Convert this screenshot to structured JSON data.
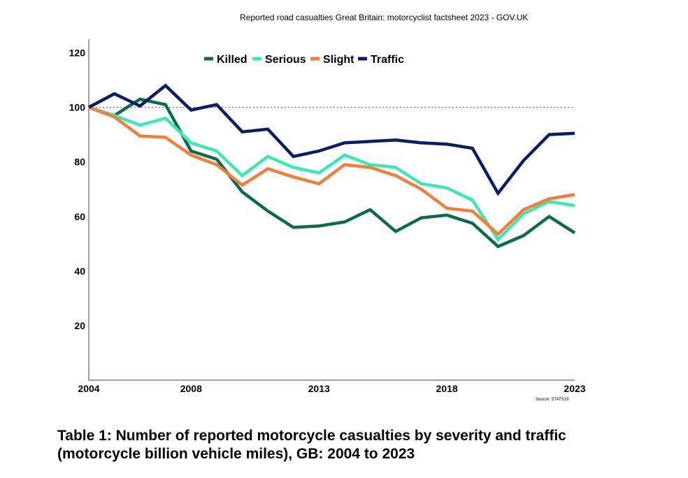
{
  "header": {
    "text": "Reported road casualties Great Britain: motorcyclist factsheet 2023 - GOV.UK"
  },
  "caption": {
    "text": "Table 1: Number of reported motorcycle casualties by severity and traffic (motorcycle billion vehicle miles), GB: 2004 to 2023"
  },
  "chart_data": {
    "type": "line",
    "title": "",
    "xlabel": "",
    "ylabel": "",
    "x": [
      2004,
      2005,
      2006,
      2007,
      2008,
      2009,
      2010,
      2011,
      2012,
      2013,
      2014,
      2015,
      2016,
      2017,
      2018,
      2019,
      2020,
      2021,
      2022,
      2023
    ],
    "x_tick_labels": [
      "2004",
      "2008",
      "2013",
      "2018",
      "2023"
    ],
    "x_tick_values": [
      2004,
      2008,
      2013,
      2018,
      2023
    ],
    "y_tick_labels": [
      "20",
      "40",
      "60",
      "80",
      "100",
      "120"
    ],
    "y_tick_values": [
      20,
      40,
      60,
      80,
      100,
      120
    ],
    "xlim": [
      2004,
      2023
    ],
    "ylim": [
      0,
      125
    ],
    "reference_line": 100,
    "legend_position": "top",
    "source": "Source: STATS19",
    "series": [
      {
        "name": "Killed",
        "color": "#0b6b4c",
        "values": [
          100,
          97,
          103,
          101,
          84,
          81,
          69,
          62,
          56,
          56.5,
          58,
          62.5,
          54.5,
          59.5,
          60.5,
          57.5,
          49,
          53,
          60,
          54
        ]
      },
      {
        "name": "Serious",
        "color": "#3de8b5",
        "values": [
          100,
          97,
          93.5,
          96,
          87,
          84,
          75,
          82,
          78,
          76,
          82.5,
          79,
          78,
          72,
          70.5,
          66,
          51.5,
          61,
          65.5,
          64
        ]
      },
      {
        "name": "Slight",
        "color": "#f07f3e",
        "values": [
          100,
          96.5,
          89.5,
          89,
          82.5,
          79,
          71.5,
          77.5,
          74.5,
          72,
          79,
          78,
          75,
          70,
          63,
          62,
          53.5,
          62.5,
          66.5,
          68
        ]
      },
      {
        "name": "Traffic",
        "color": "#0d1d63",
        "values": [
          100,
          105,
          100.5,
          108,
          99,
          101,
          91,
          92,
          82,
          84,
          87,
          87.5,
          88,
          87,
          86.5,
          85,
          68.5,
          80.5,
          90,
          90.5
        ]
      }
    ]
  }
}
